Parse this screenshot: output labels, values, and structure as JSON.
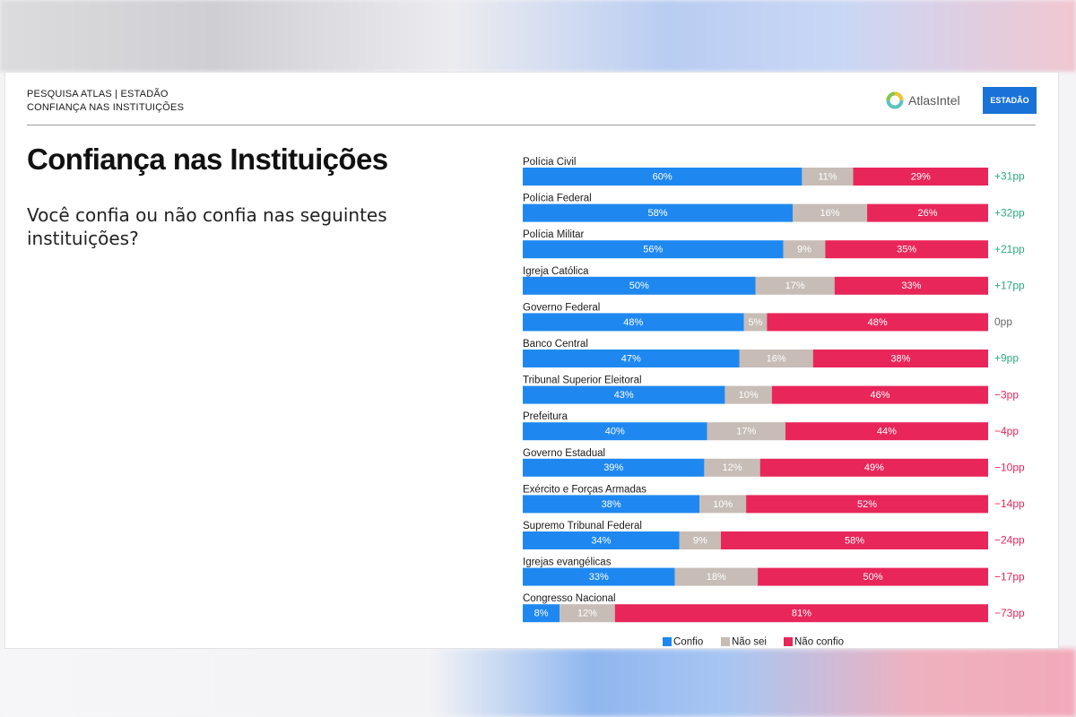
{
  "header": {
    "line1": "PESQUISA ATLAS | ESTADÃO",
    "line2": "CONFIANÇA NAS INSTITUIÇÕES",
    "atlas_logo_text": "AtlasIntel",
    "estadao_logo_text": "ESTADÃO"
  },
  "title": "Confiança nas Instituições",
  "subtitle": "Você confia ou não confia nas seguintes instituições?",
  "colors": {
    "confio": "#1e88f0",
    "nao_sei": "#c7bcb6",
    "nao_confio": "#e8265a",
    "positive": "#2eaa7e",
    "neutral": "#666666",
    "negative": "#e8265a"
  },
  "chart_data": {
    "type": "bar",
    "orientation": "horizontal",
    "stacked": true,
    "unit": "%",
    "categories": [
      "Polícia Civil",
      "Polícia Federal",
      "Polícia Militar",
      "Igreja Católica",
      "Governo Federal",
      "Banco Central",
      "Tribunal Superior Eleitoral",
      "Prefeitura",
      "Governo Estadual",
      "Exército e Forças Armadas",
      "Supremo Tribunal Federal",
      "Igrejas evangélicas",
      "Congresso Nacional"
    ],
    "series": [
      {
        "name": "Confio",
        "values": [
          60,
          58,
          56,
          50,
          48,
          47,
          43,
          40,
          39,
          38,
          34,
          33,
          8
        ]
      },
      {
        "name": "Não sei",
        "values": [
          11,
          16,
          9,
          17,
          5,
          16,
          10,
          17,
          12,
          10,
          9,
          18,
          12
        ]
      },
      {
        "name": "Não confio",
        "values": [
          29,
          26,
          35,
          33,
          48,
          38,
          46,
          44,
          49,
          52,
          58,
          50,
          81
        ]
      }
    ],
    "net_labels": [
      "+31pp",
      "+32pp",
      "+21pp",
      "+17pp",
      "0pp",
      "+9pp",
      "−3pp",
      "−4pp",
      "−10pp",
      "−14pp",
      "−24pp",
      "−17pp",
      "−73pp"
    ],
    "legend_position": "bottom",
    "xlim": [
      0,
      100
    ]
  }
}
